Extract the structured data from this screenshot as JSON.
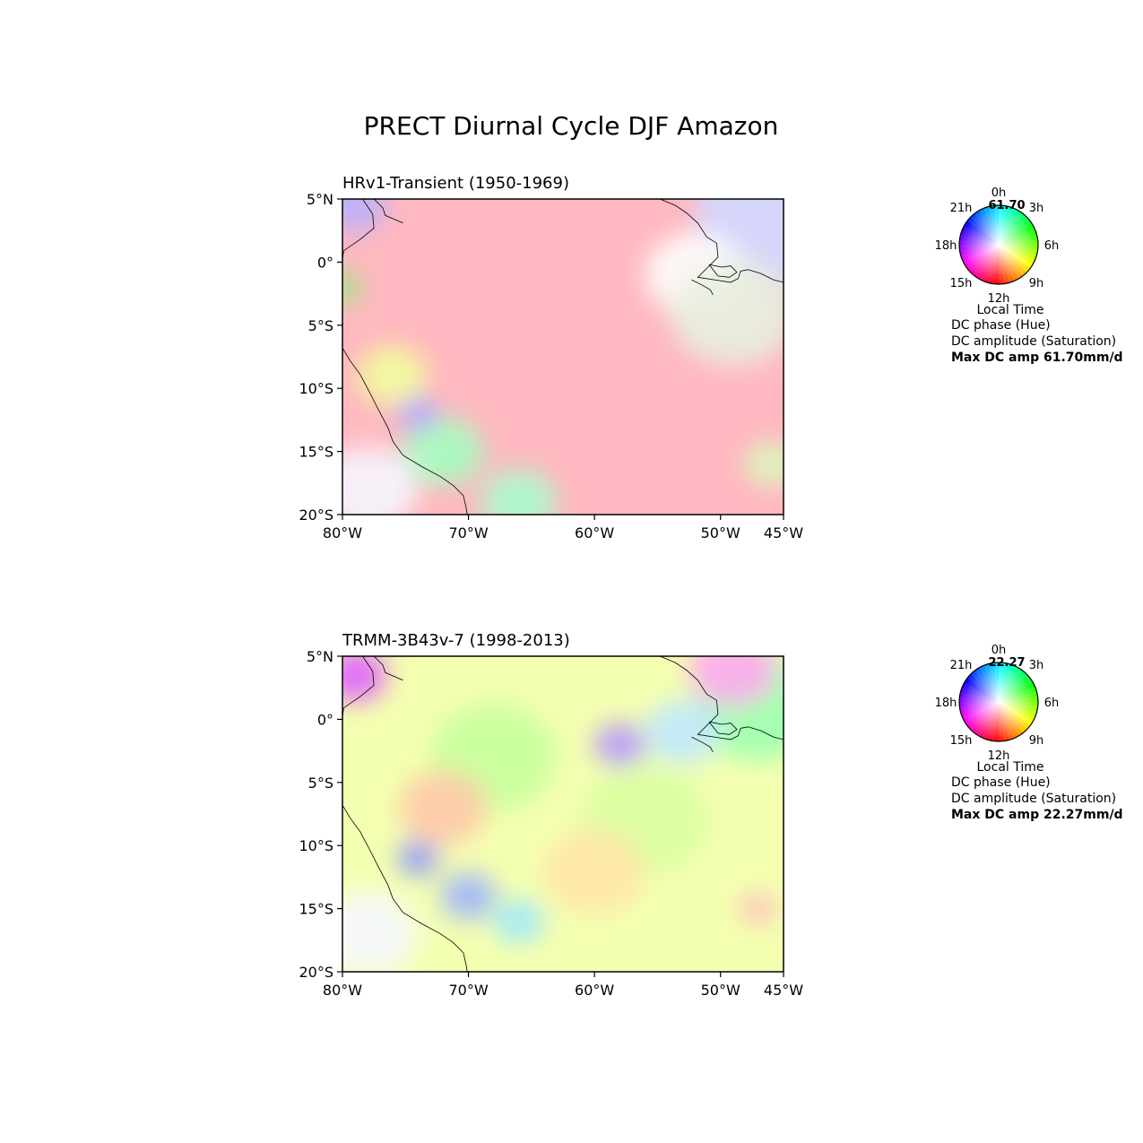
{
  "figure": {
    "title": "PRECT Diurnal Cycle  DJF Amazon"
  },
  "axes": {
    "lat_labels": [
      "5°N",
      "0°",
      "5°S",
      "10°S",
      "15°S",
      "20°S"
    ],
    "lat_values": [
      5,
      0,
      -5,
      -10,
      -15,
      -20
    ],
    "lon_labels": [
      "80°W",
      "70°W",
      "60°W",
      "50°W",
      "45°W"
    ],
    "lon_values": [
      -80,
      -70,
      -60,
      -50,
      -45
    ],
    "extent": {
      "lon_min": -80,
      "lon_max": -45,
      "lat_min": -20,
      "lat_max": 5
    }
  },
  "panels": [
    {
      "subtitle": "HRv1-Transient (1950-1969)",
      "wheel_value": "61.70",
      "max_amp_text": "Max DC amp 61.70mm/d",
      "base_color": "#ffb8bf",
      "blobs": [
        {
          "lon": -45,
          "lat": 4,
          "r": 7,
          "color": "#d0d8ff"
        },
        {
          "lon": -79,
          "lat": 4.5,
          "r": 2.5,
          "color": "#b8b0ff"
        },
        {
          "lon": -52,
          "lat": -1,
          "r": 4,
          "color": "#ffffff"
        },
        {
          "lon": -49,
          "lat": -4,
          "r": 5,
          "color": "#e8f0e0"
        },
        {
          "lon": -76,
          "lat": -9,
          "r": 2.8,
          "color": "#f2ff9c"
        },
        {
          "lon": -72,
          "lat": -15,
          "r": 3.2,
          "color": "#a4ffc0"
        },
        {
          "lon": -66,
          "lat": -19,
          "r": 3,
          "color": "#a8ffcc"
        },
        {
          "lon": -74,
          "lat": -12,
          "r": 1.6,
          "color": "#b4a4ff"
        },
        {
          "lon": -46,
          "lat": -16,
          "r": 2,
          "color": "#d6ffbe"
        },
        {
          "lon": -80,
          "lat": -2,
          "r": 1.4,
          "color": "#8cf078"
        },
        {
          "lon": -78,
          "lat": -18,
          "r": 4,
          "color": "#f6f6ff"
        }
      ]
    },
    {
      "subtitle": "TRMM-3B43v-7 (1998-2013)",
      "wheel_value": "22.27",
      "max_amp_text": "Max DC amp 22.27mm/d",
      "base_color": "#f4ffb0",
      "blobs": [
        {
          "lon": -68,
          "lat": -3,
          "r": 5,
          "color": "#c8ff9c"
        },
        {
          "lon": -56,
          "lat": -8,
          "r": 5,
          "color": "#d8ffa0"
        },
        {
          "lon": -60,
          "lat": -12,
          "r": 4,
          "color": "#ffe4a8"
        },
        {
          "lon": -72,
          "lat": -7,
          "r": 3.5,
          "color": "#ffc8a8"
        },
        {
          "lon": -47,
          "lat": 1,
          "r": 5,
          "color": "#9cffb0"
        },
        {
          "lon": -53,
          "lat": -1,
          "r": 3,
          "color": "#c0e8ff"
        },
        {
          "lon": -49,
          "lat": 4,
          "r": 3.5,
          "color": "#ffa8f0"
        },
        {
          "lon": -58,
          "lat": -2,
          "r": 2,
          "color": "#b494ff"
        },
        {
          "lon": -79,
          "lat": 3.5,
          "r": 2.5,
          "color": "#e060ff"
        },
        {
          "lon": -70,
          "lat": -14,
          "r": 2.2,
          "color": "#9cb4ff"
        },
        {
          "lon": -66,
          "lat": -16,
          "r": 2,
          "color": "#9ce8ff"
        },
        {
          "lon": -74,
          "lat": -11,
          "r": 1.6,
          "color": "#8890ff"
        },
        {
          "lon": -47,
          "lat": -15,
          "r": 1.5,
          "color": "#ffc0c0"
        },
        {
          "lon": -78,
          "lat": -17,
          "r": 4,
          "color": "#f6f8ff"
        }
      ]
    }
  ],
  "wheel": {
    "hour_labels": [
      "0h",
      "3h",
      "6h",
      "9h",
      "12h",
      "15h",
      "18h",
      "21h"
    ],
    "local_time_label": "Local Time",
    "hue_label": "DC phase (Hue)",
    "saturation_label": "DC amplitude (Saturation)"
  },
  "colors": {
    "coastline": "#000000",
    "axis": "#000000"
  }
}
